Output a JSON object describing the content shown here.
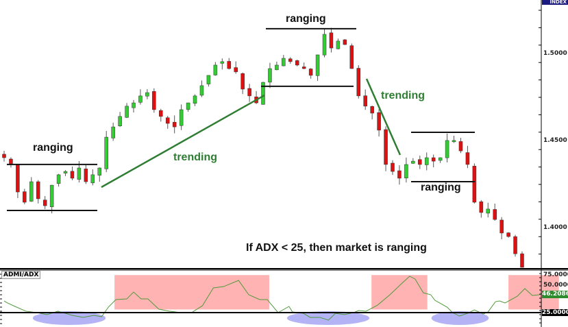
{
  "chart_data": [
    {
      "type": "candlestick",
      "title": "",
      "ylim": [
        1.3767,
        1.5311
      ],
      "y_ticks": [
        "1.5000",
        "1.4500",
        "1.4000"
      ],
      "grid": false,
      "up_color": "#33cc33",
      "down_color": "#dd1111",
      "closes": [
        1.4405,
        1.4366,
        1.4208,
        1.4149,
        1.4267,
        1.4169,
        1.4129,
        1.4247,
        1.4307,
        1.4326,
        1.4287,
        1.4346,
        1.4267,
        1.4307,
        1.4346,
        1.4523,
        1.4582,
        1.4642,
        1.4701,
        1.472,
        1.476,
        1.4779,
        1.4681,
        1.4642,
        1.4602,
        1.4582,
        1.4681,
        1.472,
        1.476,
        1.4819,
        1.4878,
        1.4937,
        1.4957,
        1.4917,
        1.4898,
        1.4799,
        1.476,
        1.472,
        1.4838,
        1.4917,
        1.4937,
        1.4976,
        1.4957,
        1.4937,
        1.4917,
        1.4878,
        1.4996,
        1.5114,
        1.5035,
        1.5075,
        1.5055,
        1.4917,
        1.476,
        1.4701,
        1.4661,
        1.4563,
        1.4366,
        1.4326,
        1.4287,
        1.4366,
        1.4385,
        1.4366,
        1.4405,
        1.4385,
        1.4405,
        1.4504,
        1.4504,
        1.4444,
        1.4366,
        1.4149,
        1.409,
        1.411,
        1.405,
        1.3972,
        1.3952,
        1.3853,
        1.3775
      ],
      "annotations": {
        "ranging_label": "ranging",
        "trending_label": "trending",
        "note": "If ADX < 25, then market is ranging"
      },
      "badge": "INDEX"
    },
    {
      "type": "line",
      "name": "ADMI/ADX",
      "ylim": [
        0,
        85
      ],
      "y_ticks": [
        "75.0000",
        "50.0000"
      ],
      "threshold": "25.0000",
      "last_value": "46.2086",
      "line_color": "#4f9a3a",
      "highlight_color": "#ffb3b3",
      "low_zone_color": "#b3b3f5",
      "points": [
        [
          0,
          39.9
        ],
        [
          0.5,
          37.3
        ],
        [
          1.6,
          32.9
        ],
        [
          3.2,
          26.8
        ],
        [
          4.8,
          25
        ],
        [
          6.3,
          22.4
        ],
        [
          7.9,
          26.8
        ],
        [
          10,
          21.5
        ],
        [
          11.6,
          18.9
        ],
        [
          13.2,
          21.5
        ],
        [
          14.3,
          19.7
        ],
        [
          15.3,
          32
        ],
        [
          16.4,
          41.7
        ],
        [
          18,
          42.5
        ],
        [
          19,
          51.3
        ],
        [
          20.1,
          42.5
        ],
        [
          21.1,
          42.5
        ],
        [
          22.7,
          29.4
        ],
        [
          24.3,
          26.8
        ],
        [
          25.9,
          25
        ],
        [
          27.5,
          25
        ],
        [
          29.1,
          33.8
        ],
        [
          30.7,
          56.6
        ],
        [
          32.2,
          58.3
        ],
        [
          34.4,
          66.2
        ],
        [
          35.9,
          47.8
        ],
        [
          37.5,
          41.7
        ],
        [
          38.6,
          41.7
        ],
        [
          40.2,
          25
        ],
        [
          41.8,
          32.9
        ],
        [
          42.3,
          25.9
        ],
        [
          43.9,
          24.1
        ],
        [
          44.9,
          18.9
        ],
        [
          46.3,
          18.9
        ],
        [
          47.6,
          15.4
        ],
        [
          48.6,
          24.1
        ],
        [
          49.9,
          22.4
        ],
        [
          51.3,
          25
        ],
        [
          52,
          27.6
        ],
        [
          53.1,
          26.8
        ],
        [
          54.8,
          34.6
        ],
        [
          56.6,
          47.8
        ],
        [
          58.4,
          62.7
        ],
        [
          59.5,
          71.5
        ],
        [
          60.3,
          68
        ],
        [
          61.5,
          50.4
        ],
        [
          62.6,
          47.8
        ],
        [
          63.2,
          40.8
        ],
        [
          65,
          32
        ],
        [
          65.8,
          25
        ],
        [
          66.8,
          20.6
        ],
        [
          68,
          24.1
        ],
        [
          69,
          28.5
        ],
        [
          70.3,
          23.2
        ],
        [
          71,
          25.9
        ],
        [
          72.1,
          39
        ],
        [
          72.7,
          39.9
        ],
        [
          73.5,
          37.3
        ],
        [
          75.3,
          46
        ],
        [
          76.4,
          55.7
        ],
        [
          77.5,
          46.9
        ],
        [
          78.5,
          47.8
        ],
        [
          79.5,
          51.3
        ],
        [
          80,
          46
        ]
      ]
    }
  ]
}
